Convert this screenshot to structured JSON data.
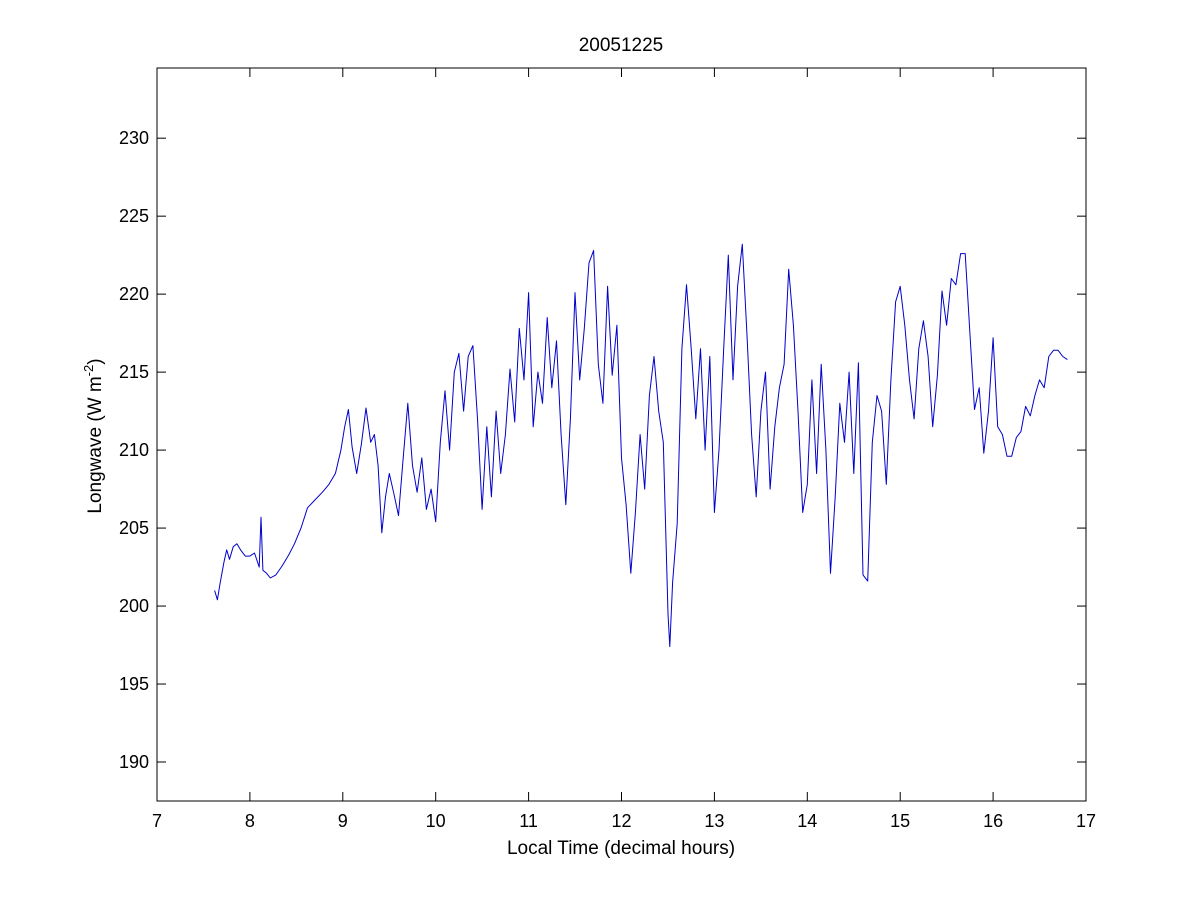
{
  "chart_data": {
    "type": "line",
    "title": "20051225",
    "xlabel": "Local Time (decimal hours)",
    "ylabel_main": "Longwave (W m",
    "ylabel_sup": "-2",
    "ylabel_close": ")",
    "xlim": [
      7,
      17
    ],
    "ylim": [
      187.5,
      234.5
    ],
    "xticks": [
      7,
      8,
      9,
      10,
      11,
      12,
      13,
      14,
      15,
      16,
      17
    ],
    "yticks": [
      190,
      195,
      200,
      205,
      210,
      215,
      220,
      225,
      230
    ],
    "grid": false,
    "line_color": "#0000cc",
    "series": [
      {
        "x": [
          7.62,
          7.65,
          7.68,
          7.72,
          7.75,
          7.78,
          7.82,
          7.86,
          7.9,
          7.95,
          8.0,
          8.05,
          8.1,
          8.12,
          8.14,
          8.18,
          8.22,
          8.28,
          8.35,
          8.42,
          8.48,
          8.55,
          8.62,
          8.7,
          8.78,
          8.85,
          8.92,
          8.98,
          9.02,
          9.06,
          9.1,
          9.15,
          9.2,
          9.25,
          9.3,
          9.34,
          9.38,
          9.42,
          9.46,
          9.5,
          9.55,
          9.6,
          9.65,
          9.7,
          9.75,
          9.8,
          9.85,
          9.9,
          9.95,
          10.0,
          10.05,
          10.1,
          10.15,
          10.2,
          10.25,
          10.3,
          10.35,
          10.4,
          10.45,
          10.5,
          10.55,
          10.6,
          10.65,
          10.7,
          10.75,
          10.8,
          10.85,
          10.9,
          10.95,
          11.0,
          11.05,
          11.1,
          11.15,
          11.2,
          11.25,
          11.3,
          11.35,
          11.4,
          11.45,
          11.5,
          11.55,
          11.6,
          11.65,
          11.7,
          11.75,
          11.8,
          11.85,
          11.9,
          11.95,
          12.0,
          12.05,
          12.1,
          12.15,
          12.2,
          12.25,
          12.3,
          12.35,
          12.4,
          12.45,
          12.5,
          12.52,
          12.55,
          12.6,
          12.65,
          12.7,
          12.75,
          12.8,
          12.85,
          12.9,
          12.95,
          13.0,
          13.05,
          13.1,
          13.15,
          13.2,
          13.25,
          13.3,
          13.35,
          13.4,
          13.45,
          13.5,
          13.55,
          13.6,
          13.65,
          13.7,
          13.75,
          13.8,
          13.85,
          13.9,
          13.95,
          14.0,
          14.05,
          14.1,
          14.15,
          14.2,
          14.25,
          14.3,
          14.35,
          14.4,
          14.45,
          14.5,
          14.55,
          14.6,
          14.65,
          14.7,
          14.75,
          14.8,
          14.85,
          14.9,
          14.95,
          15.0,
          15.05,
          15.1,
          15.15,
          15.2,
          15.25,
          15.3,
          15.35,
          15.4,
          15.45,
          15.5,
          15.55,
          15.6,
          15.65,
          15.7,
          15.75,
          15.8,
          15.85,
          15.9,
          15.95,
          16.0,
          16.05,
          16.1,
          16.15,
          16.2,
          16.25,
          16.3,
          16.35,
          16.4,
          16.45,
          16.5,
          16.55,
          16.6,
          16.65,
          16.7,
          16.75,
          16.8
        ],
        "y": [
          201.0,
          200.4,
          201.5,
          202.8,
          203.6,
          203.0,
          203.8,
          204.0,
          203.6,
          203.2,
          203.2,
          203.4,
          202.5,
          205.7,
          202.3,
          202.1,
          201.8,
          202.0,
          202.6,
          203.3,
          204.0,
          205.0,
          206.3,
          206.8,
          207.3,
          207.8,
          208.5,
          210.0,
          211.5,
          212.6,
          210.2,
          208.5,
          210.4,
          212.7,
          210.5,
          211.0,
          209.0,
          204.7,
          207.0,
          208.5,
          207.2,
          205.8,
          209.5,
          213.0,
          209.0,
          207.3,
          209.5,
          206.2,
          207.5,
          205.4,
          210.5,
          213.8,
          210.0,
          215.0,
          216.2,
          212.5,
          216.0,
          216.7,
          212.0,
          206.2,
          211.5,
          207.0,
          212.5,
          208.5,
          211.0,
          215.2,
          211.8,
          217.8,
          214.5,
          220.1,
          211.5,
          215.0,
          213.0,
          218.5,
          214.0,
          217.0,
          211.0,
          206.5,
          212.0,
          220.1,
          214.5,
          217.8,
          222.0,
          222.8,
          215.5,
          213.0,
          220.5,
          214.8,
          218.0,
          209.5,
          206.5,
          202.1,
          206.0,
          211.0,
          207.5,
          213.5,
          216.0,
          212.5,
          210.5,
          199.5,
          197.4,
          201.5,
          205.3,
          216.5,
          220.6,
          216.5,
          212.0,
          216.5,
          210.0,
          216.0,
          206.0,
          210.0,
          216.5,
          222.5,
          214.5,
          220.5,
          223.2,
          217.5,
          211.0,
          207.0,
          212.5,
          215.0,
          207.5,
          211.5,
          214.0,
          215.5,
          221.6,
          218.0,
          212.5,
          206.0,
          207.8,
          214.5,
          208.5,
          215.5,
          210.0,
          202.1,
          207.0,
          213.0,
          210.5,
          215.0,
          208.5,
          215.6,
          202.0,
          201.6,
          210.5,
          213.5,
          212.5,
          207.8,
          214.5,
          219.5,
          220.5,
          218.0,
          214.5,
          212.0,
          216.5,
          218.3,
          216.0,
          211.5,
          214.8,
          220.2,
          218.0,
          221.0,
          220.6,
          222.6,
          222.6,
          217.5,
          212.6,
          214.0,
          209.8,
          212.5,
          217.2,
          211.5,
          211.0,
          209.6,
          209.6,
          210.8,
          211.2,
          212.8,
          212.2,
          213.5,
          214.5,
          214.0,
          216.0,
          216.4,
          216.4,
          216.0,
          215.8
        ]
      }
    ]
  }
}
